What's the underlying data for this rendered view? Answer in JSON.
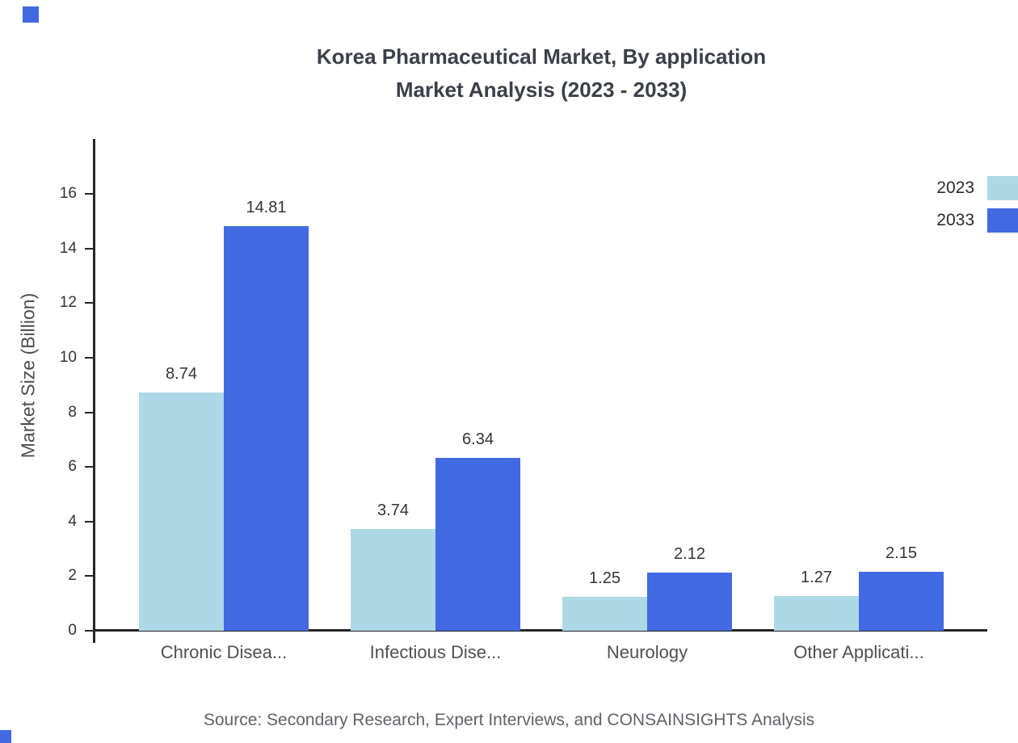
{
  "title": {
    "line1": "Korea Pharmaceutical Market, By application",
    "line2": "Market Analysis (2023 - 2033)"
  },
  "chart_data": {
    "type": "bar",
    "categories": [
      "Chronic Disea...",
      "Infectious Dise...",
      "Neurology",
      "Other Applicati..."
    ],
    "series": [
      {
        "name": "2023",
        "color": "#ADD8E6",
        "values": [
          8.74,
          3.74,
          1.25,
          1.27
        ]
      },
      {
        "name": "2033",
        "color": "#4169E1",
        "values": [
          14.81,
          6.34,
          2.12,
          2.15
        ]
      }
    ],
    "xlabel": "",
    "ylabel": "Market Size (Billion)",
    "ylim": [
      0,
      16
    ],
    "yticks": [
      0,
      2,
      4,
      6,
      8,
      10,
      12,
      14,
      16
    ],
    "grid": false,
    "legend_position": "top-right"
  },
  "source": "Source: Secondary Research, Expert Interviews, and CONSAINSIGHTS Analysis",
  "colors": {
    "series_2023": "#ADD8E6",
    "series_2033": "#4169E1",
    "axis": "#262626",
    "title_text": "#3b4048"
  }
}
